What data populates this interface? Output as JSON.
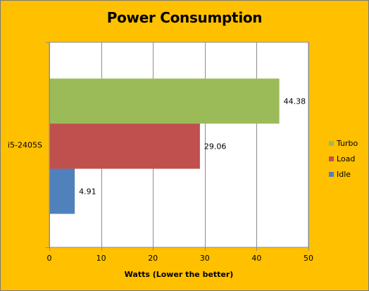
{
  "chart_data": {
    "type": "bar",
    "orientation": "horizontal",
    "title": "Power Consumption",
    "categories": [
      "i5-2405S"
    ],
    "series": [
      {
        "name": "Turbo",
        "values": [
          44.38
        ],
        "color": "#9BBB59"
      },
      {
        "name": "Load",
        "values": [
          29.06
        ],
        "color": "#C0504D"
      },
      {
        "name": "Idle",
        "values": [
          4.91
        ],
        "color": "#4F81BD"
      }
    ],
    "data_labels": [
      "44.38",
      "29.06",
      "4.91"
    ],
    "xlabel": "Watts (Lower the better)",
    "ylabel": "",
    "xlim": [
      0,
      50
    ],
    "xticks": [
      0,
      10,
      20,
      30,
      40,
      50
    ],
    "grid": true,
    "legend": "right",
    "background_color": "#FFC000",
    "plot_background_color": "#FFFFFF"
  }
}
